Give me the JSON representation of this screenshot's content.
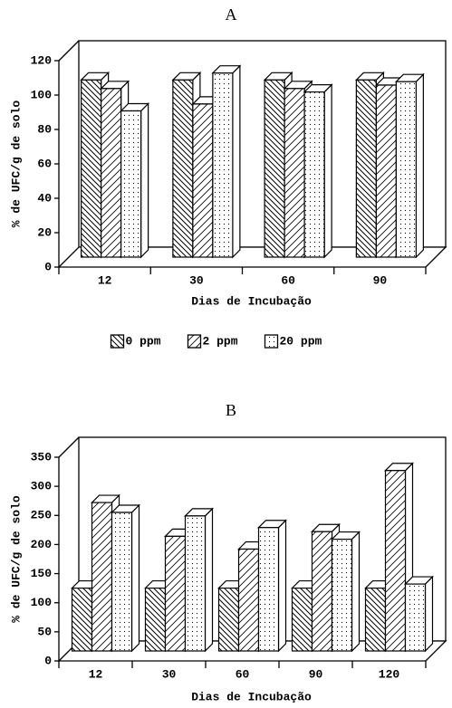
{
  "chart_data": [
    {
      "type": "bar",
      "title": "A",
      "y_label": "% de UFC/g de solo",
      "x_label": "Dias de Incubação",
      "categories": [
        "12",
        "30",
        "60",
        "90"
      ],
      "series": [
        {
          "name": "0 ppm",
          "color": "#000000",
          "values": [
            103,
            103,
            103,
            103
          ]
        },
        {
          "name": "2 ppm",
          "color": "#000000",
          "values": [
            98,
            89,
            98,
            100
          ]
        },
        {
          "name": "20 ppm",
          "color": "#000000",
          "values": [
            85,
            107,
            96,
            102
          ]
        }
      ],
      "ylim": [
        0,
        120
      ],
      "yticks": [
        0,
        20,
        40,
        60,
        80,
        100,
        120
      ],
      "legend": "bottom"
    },
    {
      "type": "bar",
      "title": "B",
      "y_label": "% de UFC/g de solo",
      "x_label": "Dias de Incubação",
      "categories": [
        "12",
        "30",
        "60",
        "90",
        "120"
      ],
      "series": [
        {
          "color": "#000000",
          "values": [
            108,
            108,
            108,
            108,
            108
          ]
        },
        {
          "color": "#000000",
          "values": [
            255,
            197,
            175,
            205,
            310
          ]
        },
        {
          "color": "#000000",
          "values": [
            238,
            232,
            212,
            192,
            115
          ]
        }
      ],
      "ylim": [
        0,
        350
      ],
      "yticks": [
        0,
        50,
        100,
        150,
        200,
        250,
        300,
        350
      ]
    }
  ]
}
